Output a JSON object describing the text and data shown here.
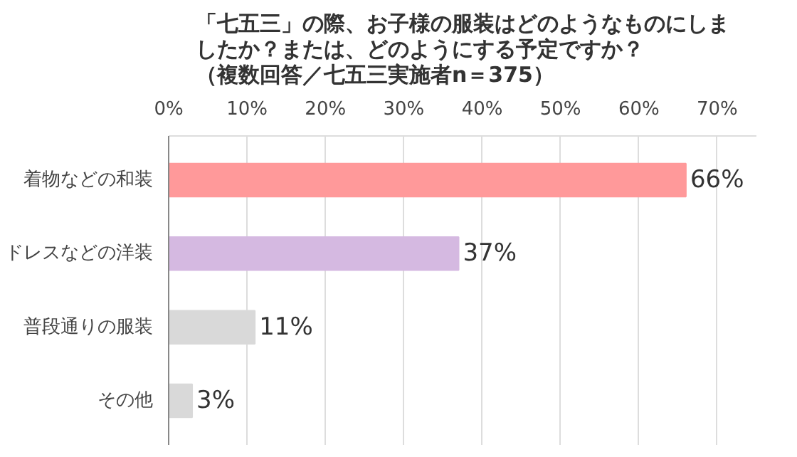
{
  "chart_data": {
    "type": "bar",
    "orientation": "horizontal",
    "title": "「七五三」の際、お子様の服装はどのようなものにしましたか？または、どのようにする予定ですか？（複数回答／七五三実施者n＝375）",
    "categories": [
      "着物などの和装",
      "ドレスなどの洋装",
      "普段通りの服装",
      "その他"
    ],
    "values": [
      66,
      37,
      11,
      3
    ],
    "colors": [
      "#ff999a",
      "#d5b9e1",
      "#d9d9d9",
      "#d9d9d9"
    ],
    "value_labels": [
      "66%",
      "37%",
      "11%",
      "3%"
    ],
    "xlim": [
      0,
      75
    ],
    "xticks": [
      {
        "value": 0,
        "label": "0%"
      },
      {
        "value": 10,
        "label": "10%"
      },
      {
        "value": 20,
        "label": "20%"
      },
      {
        "value": 30,
        "label": "30%"
      },
      {
        "value": 40,
        "label": "40%"
      },
      {
        "value": 50,
        "label": "50%"
      },
      {
        "value": 60,
        "label": "60%"
      },
      {
        "value": 70,
        "label": "70%"
      }
    ],
    "grid": "x"
  }
}
